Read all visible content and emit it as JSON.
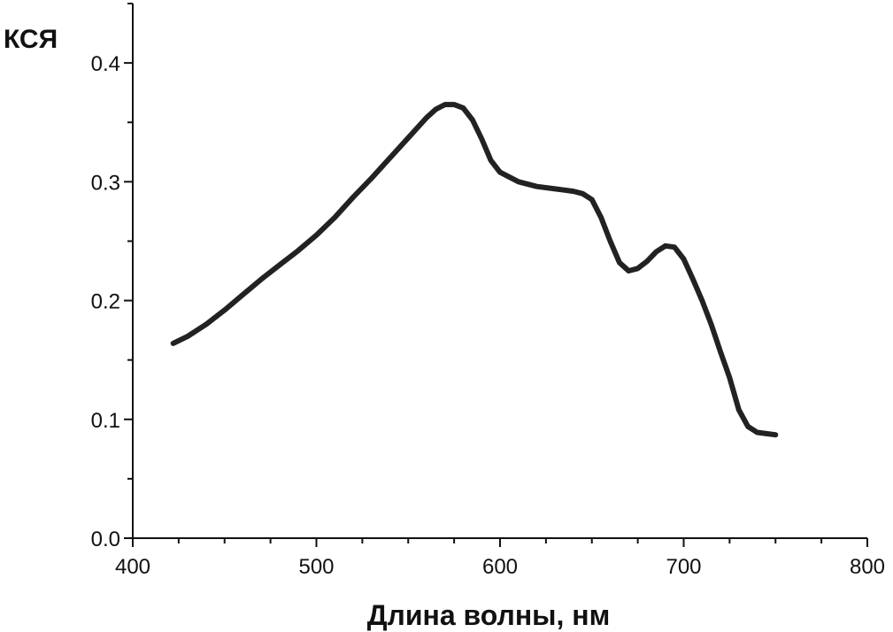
{
  "chart_data": {
    "type": "line",
    "title": "",
    "xlabel": "Длина волны, нм",
    "ylabel": "КСЯ",
    "xlim": [
      400,
      800
    ],
    "ylim": [
      0,
      0.45
    ],
    "x_ticks": [
      400,
      500,
      600,
      700,
      800
    ],
    "y_ticks": [
      0.0,
      0.1,
      0.2,
      0.3,
      0.4
    ],
    "x_tick_labels": [
      "400",
      "500",
      "600",
      "700",
      "800"
    ],
    "y_tick_labels": [
      "0.0",
      "0.1",
      "0.2",
      "0.3",
      "0.4"
    ],
    "grid": false,
    "legend": "none",
    "line_color": "#222222",
    "series": [
      {
        "x": [
          422,
          430,
          440,
          450,
          460,
          470,
          480,
          490,
          500,
          510,
          520,
          530,
          540,
          550,
          560,
          565,
          570,
          575,
          580,
          585,
          590,
          595,
          600,
          610,
          620,
          630,
          640,
          645,
          650,
          655,
          660,
          665,
          670,
          675,
          680,
          685,
          690,
          695,
          700,
          705,
          710,
          715,
          720,
          725,
          730,
          735,
          740,
          745,
          750
        ],
        "y": [
          0.164,
          0.17,
          0.18,
          0.192,
          0.205,
          0.218,
          0.23,
          0.242,
          0.255,
          0.27,
          0.287,
          0.303,
          0.32,
          0.337,
          0.354,
          0.361,
          0.365,
          0.365,
          0.362,
          0.352,
          0.336,
          0.318,
          0.308,
          0.3,
          0.296,
          0.294,
          0.292,
          0.29,
          0.285,
          0.27,
          0.25,
          0.232,
          0.225,
          0.227,
          0.233,
          0.241,
          0.246,
          0.245,
          0.235,
          0.218,
          0.2,
          0.18,
          0.157,
          0.135,
          0.108,
          0.094,
          0.089,
          0.088,
          0.087
        ]
      }
    ]
  }
}
